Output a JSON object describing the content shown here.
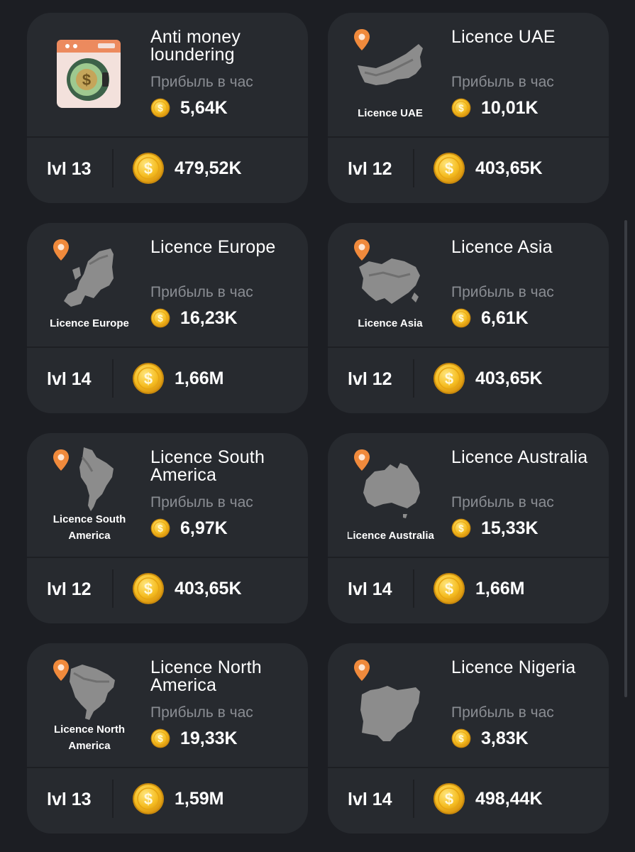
{
  "profit_label": "Прибыль в час",
  "colors": {
    "background": "#1c1e23",
    "card": "#272a2f",
    "muted_text": "#8a8d93",
    "coin": "#f2b31e",
    "pin": "#f08a3c"
  },
  "cards": [
    {
      "name": "Anti money loundering",
      "icon": "money-laundering-icon",
      "profit": "5,64K",
      "level": "lvl 13",
      "cost": "479,52K"
    },
    {
      "name": "Licence UAE",
      "icon": "uae-map-icon",
      "thumb_caption": [
        "Licence UAE"
      ],
      "profit": "10,01K",
      "level": "lvl 12",
      "cost": "403,65K"
    },
    {
      "name": "Licence Europe",
      "icon": "europe-map-icon",
      "thumb_caption": [
        "Licence Europe"
      ],
      "profit": "16,23K",
      "level": "lvl 14",
      "cost": "1,66M"
    },
    {
      "name": "Licence Asia",
      "icon": "asia-map-icon",
      "thumb_caption": [
        "Licence Asia"
      ],
      "profit": "6,61K",
      "level": "lvl 12",
      "cost": "403,65K"
    },
    {
      "name": "Licence South America",
      "icon": "south-america-map-icon",
      "thumb_caption": [
        "Licence South",
        "America"
      ],
      "profit": "6,97K",
      "level": "lvl 12",
      "cost": "403,65K"
    },
    {
      "name": "Licence Australia",
      "icon": "australia-map-icon",
      "thumb_caption": [
        "Licence Australia"
      ],
      "profit": "15,33K",
      "level": "lvl 14",
      "cost": "1,66M"
    },
    {
      "name": "Licence North America",
      "icon": "north-america-map-icon",
      "thumb_caption": [
        "Licence North",
        "America"
      ],
      "profit": "19,33K",
      "level": "lvl 13",
      "cost": "1,59M"
    },
    {
      "name": "Licence Nigeria",
      "icon": "nigeria-map-icon",
      "profit": "3,83K",
      "level": "lvl 14",
      "cost": "498,44K"
    }
  ]
}
